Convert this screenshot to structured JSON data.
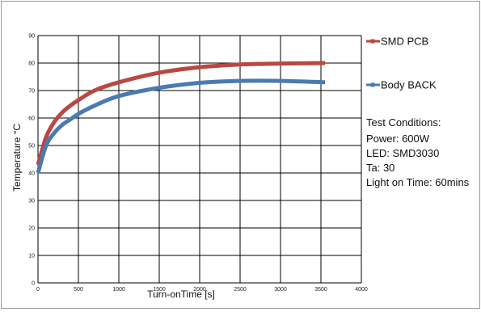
{
  "chart_data": {
    "type": "line",
    "xlabel": "Turn-onTime [s]",
    "ylabel": "Temperature °C",
    "xlim": [
      0,
      4000
    ],
    "ylim": [
      0,
      90
    ],
    "x_ticks": [
      0,
      500,
      1000,
      1500,
      2000,
      2500,
      3000,
      3500,
      4000
    ],
    "y_ticks": [
      0,
      10,
      20,
      30,
      40,
      50,
      60,
      70,
      80,
      90
    ],
    "grid": true,
    "legend_position": "right",
    "series": [
      {
        "name": "SMD PCB",
        "color": "#b94742",
        "x": [
          0,
          100,
          200,
          300,
          400,
          500,
          700,
          1000,
          1500,
          2000,
          2500,
          3000,
          3550
        ],
        "y": [
          43,
          53,
          58.5,
          62,
          64.5,
          66.5,
          70,
          73,
          76.5,
          78.5,
          79.5,
          79.8,
          80
        ]
      },
      {
        "name": "Body BACK",
        "color": "#4a7ab2",
        "x": [
          0,
          100,
          200,
          300,
          400,
          500,
          700,
          1000,
          1500,
          2000,
          2500,
          3000,
          3550
        ],
        "y": [
          40,
          50,
          54.5,
          57.5,
          59.5,
          61.5,
          64.5,
          68,
          71,
          72.8,
          73.5,
          73.5,
          73
        ]
      }
    ],
    "annotations": [
      "Test Conditions:",
      "Power: 600W",
      "LED: SMD3030",
      "Ta: 30",
      "Light on Time: 60mins"
    ]
  }
}
